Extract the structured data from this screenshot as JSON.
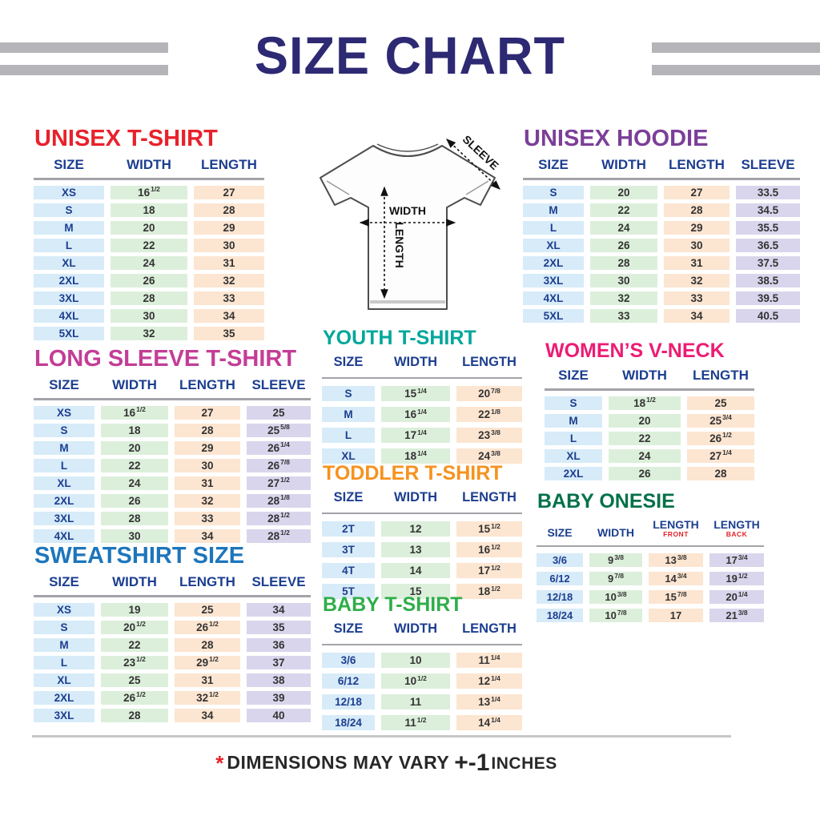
{
  "page": {
    "title": "SIZE CHART",
    "footer": {
      "asterisk": "*",
      "text": "DIMENSIONS MAY VARY",
      "plusminus": "+-1",
      "unit": "INCHES"
    }
  },
  "diagram": {
    "width_label": "WIDTH",
    "length_label": "LENGTH",
    "sleeve_label": "SLEEVE"
  },
  "palette": {
    "title_navy": "#2d2973",
    "header_navy": "#1c3e90",
    "stripe_gray": "#b5b4b9",
    "cell_size": "#d7ebf8",
    "cell_width": "#dcefdb",
    "cell_length": "#fce5d1",
    "cell_sleeve": "#d8d5ec",
    "footer_red": "#e8212b"
  },
  "tables": [
    {
      "id": "unisex-tshirt",
      "title": "UNISEX T-SHIRT",
      "title_color": "#e8212b",
      "columns": [
        {
          "label": "SIZE",
          "role": "size"
        },
        {
          "label": "WIDTH",
          "role": "width"
        },
        {
          "label": "LENGTH",
          "role": "length"
        }
      ],
      "col_widths": [
        "88px",
        "96px",
        "88px"
      ],
      "rows": [
        [
          "XS",
          "16 1/2",
          "27"
        ],
        [
          "S",
          "18",
          "28"
        ],
        [
          "M",
          "20",
          "29"
        ],
        [
          "L",
          "22",
          "30"
        ],
        [
          "XL",
          "24",
          "31"
        ],
        [
          "2XL",
          "26",
          "32"
        ],
        [
          "3XL",
          "28",
          "33"
        ],
        [
          "4XL",
          "30",
          "34"
        ],
        [
          "5XL",
          "32",
          "35"
        ]
      ]
    },
    {
      "id": "long-sleeve-tshirt",
      "title": "LONG SLEEVE T-SHIRT",
      "title_color": "#c33d96",
      "columns": [
        {
          "label": "SIZE",
          "role": "size"
        },
        {
          "label": "WIDTH",
          "role": "width"
        },
        {
          "label": "LENGTH",
          "role": "length"
        },
        {
          "label": "SLEEVE",
          "role": "sleeve"
        }
      ],
      "col_widths": [
        "76px",
        "84px",
        "82px",
        "80px"
      ],
      "rows": [
        [
          "XS",
          "16 1/2",
          "27",
          "25"
        ],
        [
          "S",
          "18",
          "28",
          "25 5/8"
        ],
        [
          "M",
          "20",
          "29",
          "26 1/4"
        ],
        [
          "L",
          "22",
          "30",
          "26 7/8"
        ],
        [
          "XL",
          "24",
          "31",
          "27 1/2"
        ],
        [
          "2XL",
          "26",
          "32",
          "28 1/8"
        ],
        [
          "3XL",
          "28",
          "33",
          "28 1/2"
        ],
        [
          "4XL",
          "30",
          "34",
          "28 1/2"
        ]
      ]
    },
    {
      "id": "sweatshirt",
      "title": "SWEATSHIRT SIZE",
      "title_color": "#1d76bc",
      "columns": [
        {
          "label": "SIZE",
          "role": "size"
        },
        {
          "label": "WIDTH",
          "role": "width"
        },
        {
          "label": "LENGTH",
          "role": "length"
        },
        {
          "label": "SLEEVE",
          "role": "sleeve"
        }
      ],
      "col_widths": [
        "76px",
        "84px",
        "82px",
        "80px"
      ],
      "rows": [
        [
          "XS",
          "19",
          "25",
          "34"
        ],
        [
          "S",
          "20 1/2",
          "26 1/2",
          "35"
        ],
        [
          "M",
          "22",
          "28",
          "36"
        ],
        [
          "L",
          "23 1/2",
          "29 1/2",
          "37"
        ],
        [
          "XL",
          "25",
          "31",
          "38"
        ],
        [
          "2XL",
          "26 1/2",
          "32 1/2",
          "39"
        ],
        [
          "3XL",
          "28",
          "34",
          "40"
        ]
      ]
    },
    {
      "id": "unisex-hoodie",
      "title": "UNISEX HOODIE",
      "title_color": "#7c3f98",
      "columns": [
        {
          "label": "SIZE",
          "role": "size"
        },
        {
          "label": "WIDTH",
          "role": "width"
        },
        {
          "label": "LENGTH",
          "role": "length"
        },
        {
          "label": "SLEEVE",
          "role": "sleeve"
        }
      ],
      "col_widths": [
        "76px",
        "84px",
        "82px",
        "80px"
      ],
      "rows": [
        [
          "S",
          "20",
          "27",
          "33.5"
        ],
        [
          "M",
          "22",
          "28",
          "34.5"
        ],
        [
          "L",
          "24",
          "29",
          "35.5"
        ],
        [
          "XL",
          "26",
          "30",
          "36.5"
        ],
        [
          "2XL",
          "28",
          "31",
          "37.5"
        ],
        [
          "3XL",
          "30",
          "32",
          "38.5"
        ],
        [
          "4XL",
          "32",
          "33",
          "39.5"
        ],
        [
          "5XL",
          "33",
          "34",
          "40.5"
        ]
      ]
    },
    {
      "id": "youth-tshirt",
      "title": "YOUTH T-SHIRT",
      "title_color": "#00a79b",
      "columns": [
        {
          "label": "SIZE",
          "role": "size"
        },
        {
          "label": "WIDTH",
          "role": "width"
        },
        {
          "label": "LENGTH",
          "role": "length"
        }
      ],
      "col_widths": [
        "66px",
        "86px",
        "82px"
      ],
      "rows": [
        [
          "S",
          "15 1/4",
          "20 7/8"
        ],
        [
          "M",
          "16 1/4",
          "22 1/8"
        ],
        [
          "L",
          "17 1/4",
          "23 3/8"
        ],
        [
          "XL",
          "18 1/4",
          "24 3/8"
        ]
      ]
    },
    {
      "id": "toddler-tshirt",
      "title": "TODDLER T-SHIRT",
      "title_color": "#f6921e",
      "columns": [
        {
          "label": "SIZE",
          "role": "size"
        },
        {
          "label": "WIDTH",
          "role": "width"
        },
        {
          "label": "LENGTH",
          "role": "length"
        }
      ],
      "col_widths": [
        "66px",
        "86px",
        "82px"
      ],
      "rows": [
        [
          "2T",
          "12",
          "15 1/2"
        ],
        [
          "3T",
          "13",
          "16 1/2"
        ],
        [
          "4T",
          "14",
          "17 1/2"
        ],
        [
          "5T",
          "15",
          "18 1/2"
        ]
      ]
    },
    {
      "id": "baby-tshirt",
      "title": "BABY T-SHIRT",
      "title_color": "#2fae49",
      "columns": [
        {
          "label": "SIZE",
          "role": "size"
        },
        {
          "label": "WIDTH",
          "role": "width"
        },
        {
          "label": "LENGTH",
          "role": "length"
        }
      ],
      "col_widths": [
        "66px",
        "86px",
        "82px"
      ],
      "rows": [
        [
          "3/6",
          "10",
          "11 1/4"
        ],
        [
          "6/12",
          "10 1/2",
          "12 1/4"
        ],
        [
          "12/18",
          "11",
          "13 1/4"
        ],
        [
          "18/24",
          "11 1/2",
          "14 1/4"
        ]
      ]
    },
    {
      "id": "womens-vneck",
      "title": "WOMEN’S V-NECK",
      "title_color": "#ec1c74",
      "columns": [
        {
          "label": "SIZE",
          "role": "size"
        },
        {
          "label": "WIDTH",
          "role": "width"
        },
        {
          "label": "LENGTH",
          "role": "length"
        }
      ],
      "col_widths": [
        "72px",
        "90px",
        "84px"
      ],
      "rows": [
        [
          "S",
          "18 1/2",
          "25"
        ],
        [
          "M",
          "20",
          "25 3/4"
        ],
        [
          "L",
          "22",
          "26 1/2"
        ],
        [
          "XL",
          "24",
          "27 1/4"
        ],
        [
          "2XL",
          "26",
          "28"
        ]
      ]
    },
    {
      "id": "baby-onesie",
      "title": "BABY ONESIE",
      "title_color": "#03714a",
      "columns": [
        {
          "label": "SIZE",
          "role": "size"
        },
        {
          "label": "WIDTH",
          "role": "width"
        },
        {
          "label": "LENGTH",
          "sublabel": "FRONT",
          "role": "length"
        },
        {
          "label": "LENGTH",
          "sublabel": "BACK",
          "role": "sleeve"
        }
      ],
      "col_widths": [
        "58px",
        "66px",
        "68px",
        "68px"
      ],
      "rows": [
        [
          "3/6",
          "9 3/8",
          "13 3/8",
          "17 3/4"
        ],
        [
          "6/12",
          "9 7/8",
          "14 3/4",
          "19 1/2"
        ],
        [
          "12/18",
          "10 3/8",
          "15 7/8",
          "20 1/4"
        ],
        [
          "18/24",
          "10 7/8",
          "17",
          "21 3/8"
        ]
      ]
    }
  ]
}
